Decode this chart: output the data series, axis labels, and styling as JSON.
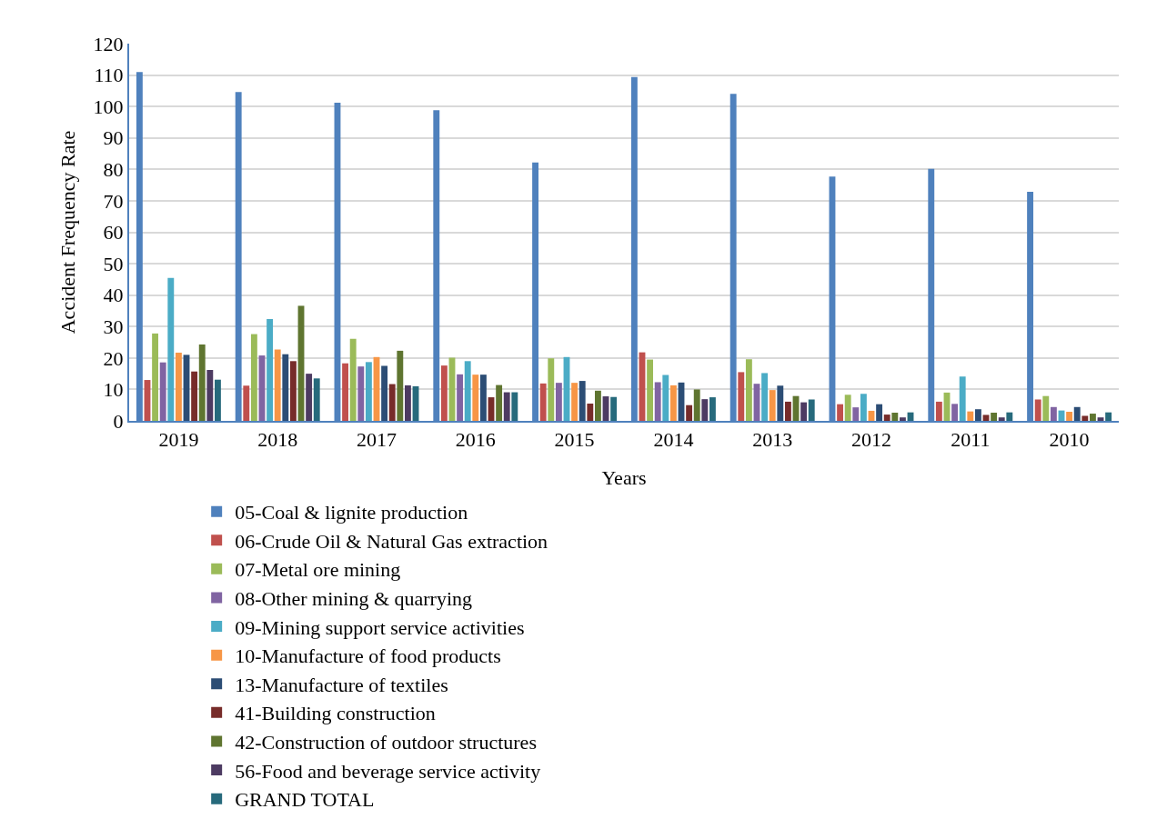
{
  "chart_data": {
    "type": "bar",
    "xlabel": "Years",
    "ylabel": "Accident Frequency Rate",
    "categories": [
      "2019",
      "2018",
      "2017",
      "2016",
      "2015",
      "2014",
      "2013",
      "2012",
      "2011",
      "2010"
    ],
    "ylim": [
      0,
      120
    ],
    "yticks": [
      0,
      10,
      20,
      30,
      40,
      50,
      60,
      70,
      80,
      90,
      100,
      110,
      120
    ],
    "grid": "y",
    "legend": "bottom",
    "series": [
      {
        "name": "05-Coal & lignite production",
        "color": "#4f81bd",
        "values": [
          111,
          104.6,
          101.2,
          98.8,
          82.2,
          109.4,
          104,
          77.7,
          80.2,
          72.9
        ]
      },
      {
        "name": "06-Crude Oil & Natural Gas extraction",
        "color": "#c0504d",
        "values": [
          13,
          11.2,
          18.3,
          17.6,
          11.9,
          21.8,
          15.5,
          5.3,
          6.1,
          6.8
        ]
      },
      {
        "name": "07-Metal ore mining",
        "color": "#9bbb59",
        "values": [
          27.8,
          27.6,
          26.1,
          20.1,
          19.9,
          19.5,
          19.6,
          8.3,
          9,
          7.9
        ]
      },
      {
        "name": "08-Other mining & quarrying",
        "color": "#8064a2",
        "values": [
          18.6,
          20.8,
          17.3,
          14.8,
          12.1,
          12.3,
          11.8,
          4.3,
          5.4,
          4.4
        ]
      },
      {
        "name": "09-Mining support service activities",
        "color": "#4bacc6",
        "values": [
          45.5,
          32.4,
          18.7,
          19,
          20.3,
          14.6,
          15.2,
          8.6,
          14.1,
          3.3
        ]
      },
      {
        "name": "10-Manufacture of food products",
        "color": "#f79646",
        "values": [
          21.7,
          22.7,
          20.3,
          14.7,
          12.1,
          11.3,
          9.8,
          3.2,
          3,
          2.9
        ]
      },
      {
        "name": "13-Manufacture of textiles",
        "color": "#2c4d75",
        "values": [
          21,
          21.2,
          17.5,
          14.7,
          12.7,
          12.2,
          11.2,
          5.3,
          3.7,
          4.4
        ]
      },
      {
        "name": "41-Building construction",
        "color": "#772c2a",
        "values": [
          15.7,
          19,
          11.7,
          7.5,
          5.5,
          5,
          6.1,
          2,
          1.9,
          1.6
        ]
      },
      {
        "name": "42-Construction of outdoor structures",
        "color": "#5f7530",
        "values": [
          24.3,
          36.6,
          22.3,
          11.4,
          9.6,
          10,
          7.9,
          2.6,
          2.6,
          2.3
        ]
      },
      {
        "name": "56-Food and beverage service activity",
        "color": "#4d3b62",
        "values": [
          16.2,
          15,
          11.3,
          9.1,
          7.8,
          6.9,
          5.9,
          1.1,
          1.1,
          1.1
        ]
      },
      {
        "name": "GRAND TOTAL",
        "color": "#276a7c",
        "values": [
          13.1,
          13.5,
          11,
          9.1,
          7.6,
          7.5,
          6.8,
          2.7,
          2.7,
          2.7
        ]
      }
    ]
  }
}
